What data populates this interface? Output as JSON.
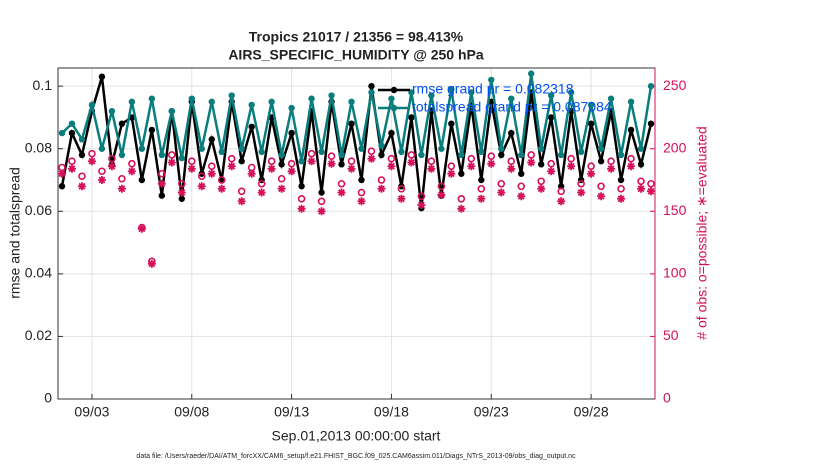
{
  "chart_data": {
    "type": "line",
    "title": "Tropics 21017 / 21356 = 98.413%",
    "subtitle": "AIRS_SPECIFIC_HUMIDITY @ 250 hPa",
    "xlabel": "Sep.01,2013 00:00:00 start",
    "ylabel": "rmse and totalspread",
    "y2label": "# of obs: o=possible; ∗=evaluated",
    "footnote": "data file: /Users/raeder/DAI/ATM_forcXX/CAM6_setup/f.e21.FHIST_BGC.f09_025.CAM6assim.011/Diags_NTrS_2013-09/obs_diag_output.nc",
    "legend_labels": [
      "rmse grand pr = 0.082318",
      "totalspread grand pr = 0.087084"
    ],
    "legend_color": "#0050f0",
    "grid": true,
    "xlim": [
      0.3,
      30.2
    ],
    "xticks": [
      {
        "value": 2,
        "label": "09/03"
      },
      {
        "value": 7,
        "label": "09/08"
      },
      {
        "value": 12,
        "label": "09/13"
      },
      {
        "value": 17,
        "label": "09/18"
      },
      {
        "value": 22,
        "label": "09/23"
      },
      {
        "value": 27,
        "label": "09/28"
      }
    ],
    "ylim": [
      0,
      0.1058
    ],
    "yticks": [
      0,
      0.02,
      0.04,
      0.06,
      0.08,
      0.1
    ],
    "y2lim": [
      0,
      264.5
    ],
    "y2ticks": [
      0,
      50,
      100,
      150,
      200,
      250
    ],
    "y2color": "#d6105a",
    "x": [
      0.5,
      1,
      1.5,
      2,
      2.5,
      3,
      3.5,
      4,
      4.5,
      5,
      5.5,
      6,
      6.5,
      7,
      7.5,
      8,
      8.5,
      9,
      9.5,
      10,
      10.5,
      11,
      11.5,
      12,
      12.5,
      13,
      13.5,
      14,
      14.5,
      15,
      15.5,
      16,
      16.5,
      17,
      17.5,
      18,
      18.5,
      19,
      19.5,
      20,
      20.5,
      21,
      21.5,
      22,
      22.5,
      23,
      23.5,
      24,
      24.5,
      25,
      25.5,
      26,
      26.5,
      27,
      27.5,
      28,
      28.5,
      29,
      29.5,
      30
    ],
    "series": [
      {
        "name": "rmse",
        "color": "#000000",
        "marker": "dot",
        "values": [
          0.068,
          0.085,
          0.078,
          0.092,
          0.103,
          0.075,
          0.088,
          0.09,
          0.07,
          0.086,
          0.065,
          0.092,
          0.064,
          0.095,
          0.072,
          0.083,
          0.07,
          0.095,
          0.076,
          0.087,
          0.07,
          0.09,
          0.075,
          0.085,
          0.068,
          0.092,
          0.066,
          0.095,
          0.075,
          0.088,
          0.07,
          0.1,
          0.078,
          0.085,
          0.068,
          0.09,
          0.061,
          0.092,
          0.065,
          0.088,
          0.072,
          0.094,
          0.07,
          0.095,
          0.078,
          0.085,
          0.072,
          0.098,
          0.075,
          0.09,
          0.068,
          0.092,
          0.07,
          0.088,
          0.076,
          0.092,
          0.07,
          0.086,
          0.075,
          0.088
        ]
      },
      {
        "name": "totalspread",
        "color": "#0a7d7d",
        "marker": "dot",
        "values": [
          0.085,
          0.088,
          0.083,
          0.094,
          0.08,
          0.092,
          0.078,
          0.095,
          0.08,
          0.096,
          0.078,
          0.092,
          0.077,
          0.096,
          0.08,
          0.095,
          0.079,
          0.097,
          0.08,
          0.094,
          0.079,
          0.095,
          0.078,
          0.093,
          0.076,
          0.096,
          0.079,
          0.097,
          0.078,
          0.095,
          0.08,
          0.098,
          0.081,
          0.096,
          0.079,
          0.098,
          0.078,
          0.097,
          0.08,
          0.099,
          0.078,
          0.098,
          0.079,
          0.102,
          0.08,
          0.096,
          0.078,
          0.104,
          0.08,
          0.097,
          0.078,
          0.098,
          0.079,
          0.094,
          0.08,
          0.096,
          0.078,
          0.095,
          0.08,
          0.1
        ]
      },
      {
        "name": "possible",
        "color": "#d6105a",
        "marker": "circle",
        "axis": "y2",
        "values": [
          185,
          190,
          178,
          196,
          182,
          192,
          176,
          188,
          137,
          110,
          180,
          195,
          172,
          190,
          178,
          186,
          175,
          192,
          166,
          185,
          172,
          190,
          176,
          188,
          160,
          196,
          158,
          194,
          172,
          190,
          165,
          198,
          175,
          192,
          168,
          195,
          162,
          190,
          170,
          186,
          160,
          192,
          168,
          194,
          172,
          190,
          170,
          195,
          174,
          188,
          166,
          192,
          172,
          186,
          170,
          190,
          168,
          192,
          174,
          172
        ]
      },
      {
        "name": "evaluated",
        "color": "#d6105a",
        "marker": "star",
        "axis": "y2",
        "values": [
          180,
          184,
          170,
          190,
          175,
          186,
          168,
          182,
          136,
          108,
          172,
          189,
          165,
          184,
          170,
          180,
          168,
          186,
          158,
          180,
          165,
          184,
          168,
          182,
          152,
          190,
          150,
          188,
          165,
          184,
          158,
          192,
          168,
          186,
          160,
          189,
          155,
          184,
          163,
          180,
          152,
          186,
          160,
          188,
          165,
          184,
          162,
          189,
          168,
          182,
          158,
          186,
          165,
          180,
          162,
          184,
          160,
          186,
          168,
          166
        ]
      }
    ]
  }
}
